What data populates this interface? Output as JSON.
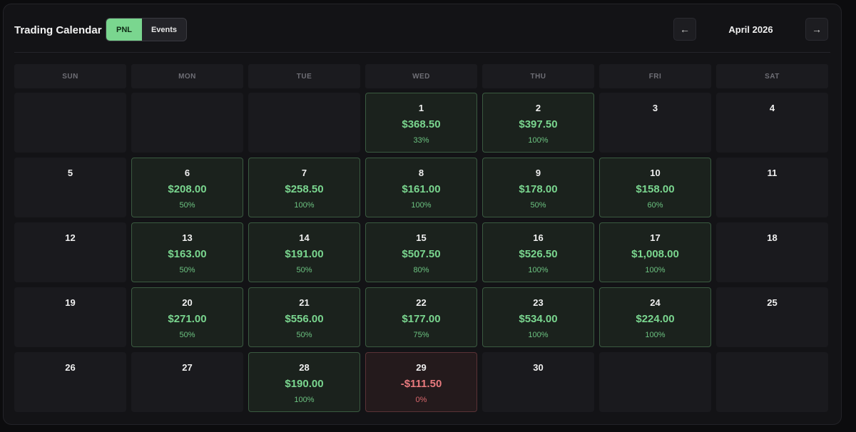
{
  "header": {
    "title": "Trading Calendar",
    "toggle": {
      "pnl": "PNL",
      "events": "Events",
      "active": "PNL"
    },
    "prev_icon": "←",
    "next_icon": "→",
    "month": "April 2026"
  },
  "weekdays": [
    "SUN",
    "MON",
    "TUE",
    "WED",
    "THU",
    "FRI",
    "SAT"
  ],
  "colors": {
    "positive": "#7ad68f",
    "negative": "#e87a7e"
  },
  "weeks": [
    [
      {
        "day": "",
        "pnl": "",
        "pct": "",
        "status": "empty"
      },
      {
        "day": "",
        "pnl": "",
        "pct": "",
        "status": "empty"
      },
      {
        "day": "",
        "pnl": "",
        "pct": "",
        "status": "empty"
      },
      {
        "day": "1",
        "pnl": "$368.50",
        "pct": "33%",
        "status": "pos"
      },
      {
        "day": "2",
        "pnl": "$397.50",
        "pct": "100%",
        "status": "pos"
      },
      {
        "day": "3",
        "pnl": "",
        "pct": "",
        "status": "none"
      },
      {
        "day": "4",
        "pnl": "",
        "pct": "",
        "status": "none"
      }
    ],
    [
      {
        "day": "5",
        "pnl": "",
        "pct": "",
        "status": "none"
      },
      {
        "day": "6",
        "pnl": "$208.00",
        "pct": "50%",
        "status": "pos"
      },
      {
        "day": "7",
        "pnl": "$258.50",
        "pct": "100%",
        "status": "pos"
      },
      {
        "day": "8",
        "pnl": "$161.00",
        "pct": "100%",
        "status": "pos"
      },
      {
        "day": "9",
        "pnl": "$178.00",
        "pct": "50%",
        "status": "pos"
      },
      {
        "day": "10",
        "pnl": "$158.00",
        "pct": "60%",
        "status": "pos"
      },
      {
        "day": "11",
        "pnl": "",
        "pct": "",
        "status": "none"
      }
    ],
    [
      {
        "day": "12",
        "pnl": "",
        "pct": "",
        "status": "none"
      },
      {
        "day": "13",
        "pnl": "$163.00",
        "pct": "50%",
        "status": "pos"
      },
      {
        "day": "14",
        "pnl": "$191.00",
        "pct": "50%",
        "status": "pos"
      },
      {
        "day": "15",
        "pnl": "$507.50",
        "pct": "80%",
        "status": "pos"
      },
      {
        "day": "16",
        "pnl": "$526.50",
        "pct": "100%",
        "status": "pos"
      },
      {
        "day": "17",
        "pnl": "$1,008.00",
        "pct": "100%",
        "status": "pos"
      },
      {
        "day": "18",
        "pnl": "",
        "pct": "",
        "status": "none"
      }
    ],
    [
      {
        "day": "19",
        "pnl": "",
        "pct": "",
        "status": "none"
      },
      {
        "day": "20",
        "pnl": "$271.00",
        "pct": "50%",
        "status": "pos"
      },
      {
        "day": "21",
        "pnl": "$556.00",
        "pct": "50%",
        "status": "pos"
      },
      {
        "day": "22",
        "pnl": "$177.00",
        "pct": "75%",
        "status": "pos"
      },
      {
        "day": "23",
        "pnl": "$534.00",
        "pct": "100%",
        "status": "pos"
      },
      {
        "day": "24",
        "pnl": "$224.00",
        "pct": "100%",
        "status": "pos"
      },
      {
        "day": "25",
        "pnl": "",
        "pct": "",
        "status": "none"
      }
    ],
    [
      {
        "day": "26",
        "pnl": "",
        "pct": "",
        "status": "none"
      },
      {
        "day": "27",
        "pnl": "",
        "pct": "",
        "status": "none"
      },
      {
        "day": "28",
        "pnl": "$190.00",
        "pct": "100%",
        "status": "pos"
      },
      {
        "day": "29",
        "pnl": "-$111.50",
        "pct": "0%",
        "status": "neg"
      },
      {
        "day": "30",
        "pnl": "",
        "pct": "",
        "status": "none"
      },
      {
        "day": "",
        "pnl": "",
        "pct": "",
        "status": "empty"
      },
      {
        "day": "",
        "pnl": "",
        "pct": "",
        "status": "empty"
      }
    ]
  ]
}
